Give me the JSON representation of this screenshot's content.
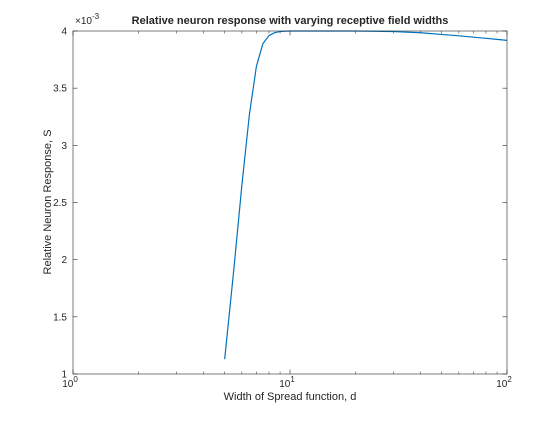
{
  "chart_data": {
    "type": "line",
    "title": "Relative neuron response with varying receptive field widths",
    "xlabel": "Width of Spread function, d",
    "ylabel": "Relative Neuron Response, S",
    "xscale": "log",
    "xlim": [
      1,
      100
    ],
    "ylim": [
      0.001,
      0.004
    ],
    "y_multiplier_label": "×10",
    "y_multiplier_exponent": "-3",
    "grid": false,
    "legend": "none",
    "x_ticks": [
      {
        "value": 1,
        "base": "10",
        "exp": "0"
      },
      {
        "value": 10,
        "base": "10",
        "exp": "1"
      },
      {
        "value": 100,
        "base": "10",
        "exp": "2"
      }
    ],
    "y_ticks": [
      {
        "value": 0.001,
        "label": "1"
      },
      {
        "value": 0.0015,
        "label": "1.5"
      },
      {
        "value": 0.002,
        "label": "2"
      },
      {
        "value": 0.0025,
        "label": "2.5"
      },
      {
        "value": 0.003,
        "label": "3"
      },
      {
        "value": 0.0035,
        "label": "3.5"
      },
      {
        "value": 0.004,
        "label": "4"
      }
    ],
    "series": [
      {
        "color": "#0072bd",
        "x": [
          5,
          5.5,
          6,
          6.5,
          7,
          7.5,
          8,
          8.5,
          9,
          9.5,
          10,
          11,
          12,
          14,
          16,
          20,
          25,
          30,
          40,
          50,
          60,
          70,
          80,
          90,
          100
        ],
        "y": [
          0.00113,
          0.0019,
          0.00265,
          0.00327,
          0.00369,
          0.00389,
          0.00396,
          0.003985,
          0.003995,
          0.0039985,
          0.004,
          0.004,
          0.004,
          0.004,
          0.004,
          0.004,
          0.0039975,
          0.003995,
          0.003985,
          0.00397,
          0.003958,
          0.003946,
          0.003936,
          0.003927,
          0.003918
        ]
      }
    ]
  }
}
